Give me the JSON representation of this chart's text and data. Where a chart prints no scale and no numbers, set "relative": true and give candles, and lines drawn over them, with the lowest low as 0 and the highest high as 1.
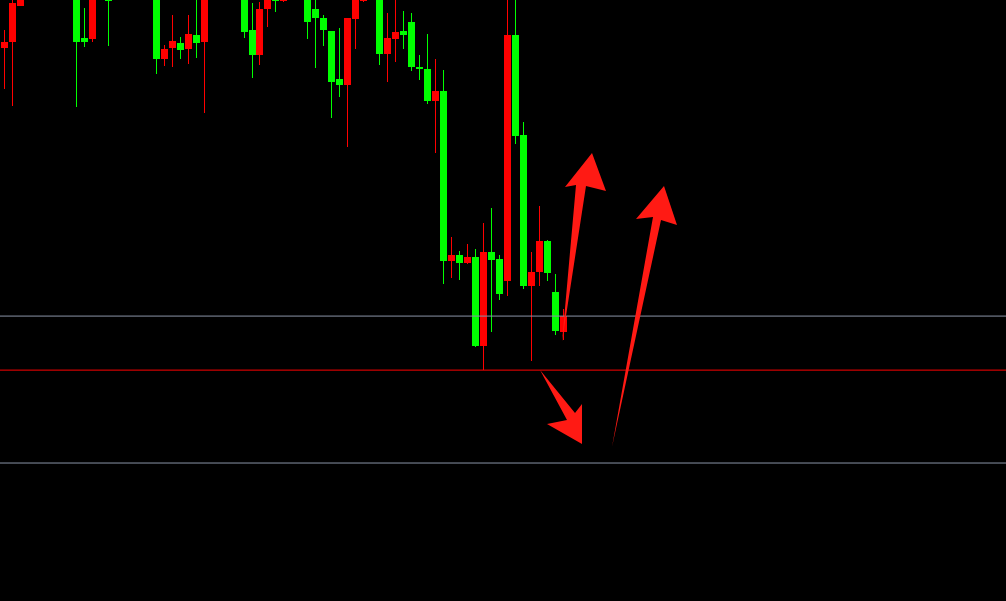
{
  "chart_data": {
    "type": "candlestick",
    "relative": true,
    "categories": [
      null,
      null,
      null,
      null,
      null,
      null,
      null,
      null,
      null,
      null,
      null,
      null,
      null,
      null,
      null,
      null,
      null,
      null,
      null,
      null,
      null,
      null,
      null,
      null,
      null,
      null,
      null,
      null,
      null,
      null,
      null,
      null,
      null,
      null,
      null,
      null,
      null,
      null,
      null,
      null,
      null,
      null,
      null,
      null,
      null,
      null,
      null,
      null,
      null,
      null,
      null,
      null,
      null,
      null,
      null,
      null,
      null,
      null,
      null,
      null,
      null,
      null,
      null,
      null,
      null,
      null,
      null,
      null,
      null,
      null,
      null,
      null,
      null,
      null,
      null,
      null,
      null,
      null,
      null,
      null,
      null,
      null,
      null,
      null,
      null,
      null,
      null,
      null,
      null,
      null,
      null,
      null,
      null,
      null,
      null,
      null,
      null,
      null,
      null,
      null,
      null,
      null,
      null,
      null,
      null,
      null,
      null,
      null,
      null,
      null,
      null,
      null,
      null,
      null,
      null,
      null,
      null,
      null,
      null,
      null,
      null,
      null,
      null,
      null,
      null,
      null
    ],
    "ohlc": [
      [
        0.87,
        0.919,
        0.759,
        0.886
      ],
      [
        0.886,
        1,
        0.714,
        0.992
      ],
      [
        0.984,
        1,
        0.984,
        1
      ],
      null,
      null,
      null,
      null,
      null,
      null,
      [
        1,
        1,
        0.711,
        0.886
      ],
      [
        0.897,
        0.978,
        0.873,
        0.886
      ],
      [
        0.895,
        1,
        0.886,
        1
      ],
      null,
      [
        1,
        1,
        0.876,
        1
      ],
      null,
      null,
      null,
      null,
      null,
      [
        1,
        1,
        0.8,
        0.841
      ],
      [
        0.841,
        0.878,
        0.822,
        0.868
      ],
      [
        0.87,
        0.959,
        0.819,
        0.889
      ],
      [
        0.884,
        0.9,
        0.841,
        0.865
      ],
      [
        0.868,
        0.959,
        0.827,
        0.908
      ],
      [
        0.905,
        1,
        0.843,
        0.884
      ],
      [
        0.886,
        1,
        0.695,
        1
      ],
      null,
      null,
      null,
      null,
      [
        1,
        1,
        0.897,
        0.914
      ],
      [
        0.919,
        0.992,
        0.789,
        0.851
      ],
      [
        0.851,
        0.995,
        0.824,
        0.976
      ],
      [
        0.976,
        1,
        0.927,
        1
      ],
      [
        1,
        1,
        0.968,
        1
      ],
      [
        1,
        1,
        0.995,
        1
      ],
      null,
      null,
      [
        1,
        1,
        0.895,
        0.941
      ],
      [
        0.976,
        1,
        0.816,
        0.951
      ],
      [
        0.951,
        0.959,
        0.876,
        0.919
      ],
      [
        0.916,
        0.916,
        0.681,
        0.778
      ],
      [
        0.786,
        0.924,
        0.738,
        0.77
      ],
      [
        0.77,
        0.951,
        0.603,
        0.951
      ],
      [
        0.949,
        1,
        0.868,
        1
      ],
      [
        1,
        1,
        0.995,
        1
      ],
      null,
      [
        1,
        1,
        0.824,
        0.854
      ],
      [
        0.854,
        0.965,
        0.778,
        0.897
      ],
      [
        0.895,
        1,
        0.832,
        0.914
      ],
      [
        0.916,
        0.97,
        0.868,
        0.905
      ],
      [
        0.941,
        0.965,
        0.808,
        0.819
      ],
      [
        0.819,
        0.851,
        0.784,
        0.814
      ],
      [
        0.814,
        0.908,
        0.719,
        0.727
      ],
      [
        0.727,
        0.841,
        0.586,
        0.754
      ],
      [
        0.754,
        0.811,
        0.232,
        0.295
      ],
      [
        0.295,
        0.359,
        0.249,
        0.311
      ],
      [
        0.311,
        0.322,
        0.243,
        0.289
      ],
      [
        0.289,
        0.341,
        0.286,
        0.305
      ],
      [
        0.305,
        0.327,
        0.062,
        0.065
      ],
      [
        0.065,
        0.397,
        0,
        0.319
      ],
      [
        0.319,
        0.438,
        0.103,
        0.297
      ],
      [
        0.3,
        0.311,
        0.189,
        0.205
      ],
      [
        0.241,
        1,
        0.2,
        0.905
      ],
      [
        0.905,
        1,
        0.611,
        0.632
      ],
      [
        0.635,
        0.67,
        0.219,
        0.227
      ],
      [
        0.227,
        0.319,
        0.024,
        0.265
      ],
      [
        0.265,
        0.443,
        0.227,
        0.349
      ],
      [
        0.349,
        0.351,
        0.241,
        0.262
      ],
      [
        0.211,
        0.259,
        0.095,
        0.105
      ],
      [
        0.103,
        0.165,
        0.081,
        0.146
      ],
      null,
      null,
      null,
      null,
      null,
      null,
      null,
      null,
      null,
      null,
      null,
      null,
      null,
      null,
      null,
      null,
      null,
      null,
      null,
      null,
      null,
      null,
      null,
      null,
      null,
      null,
      null,
      null,
      null,
      null,
      null,
      null,
      null,
      null,
      null,
      null,
      null,
      null,
      null,
      null,
      null,
      null,
      null,
      null,
      null,
      null,
      null,
      null,
      null,
      null,
      null,
      null,
      null,
      null,
      null
    ],
    "colors": [
      "#ff0000",
      "#ff0000",
      "#ff0000",
      null,
      null,
      null,
      null,
      null,
      null,
      "#00ff00",
      "#00ff00",
      "#ff0000",
      null,
      "#00ff00",
      null,
      null,
      null,
      null,
      null,
      "#00ff00",
      "#ff0000",
      "#ff0000",
      "#00ff00",
      "#ff0000",
      "#00ff00",
      "#ff0000",
      null,
      null,
      null,
      null,
      "#00ff00",
      "#00ff00",
      "#ff0000",
      "#ff0000",
      "#00ff00",
      "#ff0000",
      null,
      null,
      "#00ff00",
      "#00ff00",
      "#00ff00",
      "#00ff00",
      "#00ff00",
      "#ff0000",
      "#ff0000",
      "#ff0000",
      null,
      "#00ff00",
      "#ff0000",
      "#ff0000",
      "#00ff00",
      "#00ff00",
      "#00ff00",
      "#00ff00",
      "#ff0000",
      "#00ff00",
      "#ff0000",
      "#00ff00",
      "#ff0000",
      "#00ff00",
      "#ff0000",
      "#00ff00",
      "#00ff00",
      "#ff0000",
      "#00ff00",
      "#00ff00",
      "#ff0000",
      "#ff0000",
      "#00ff00",
      "#00ff00",
      "#ff0000",
      null,
      null,
      null,
      null,
      null,
      null,
      null,
      null,
      null,
      null,
      null,
      null,
      null,
      null,
      null,
      null,
      null,
      null,
      null,
      null,
      null,
      null,
      null,
      null,
      null,
      null,
      null,
      null,
      null,
      null,
      null,
      null,
      null,
      null,
      null,
      null,
      null,
      null,
      null,
      null,
      null,
      null,
      null,
      null,
      null,
      null,
      null,
      null,
      null,
      null,
      null,
      null,
      null,
      null,
      null
    ],
    "ref_lines": [
      {
        "axis": "y",
        "value": 0.146,
        "color": "#8a93a6"
      },
      {
        "axis": "y",
        "value": 0,
        "color": "#ff0000"
      },
      {
        "axis": "y",
        "value": -0.251,
        "color": "#8a93a6"
      }
    ]
  }
}
